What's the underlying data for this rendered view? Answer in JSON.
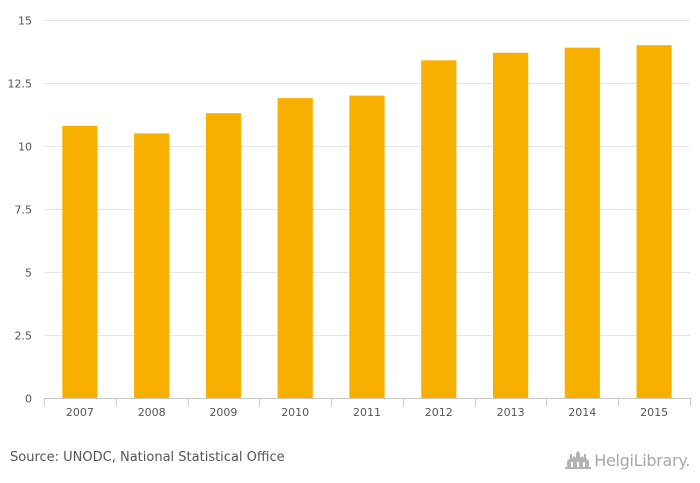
{
  "chart_data": {
    "type": "bar",
    "categories": [
      "2007",
      "2008",
      "2009",
      "2010",
      "2011",
      "2012",
      "2013",
      "2014",
      "2015"
    ],
    "values": [
      10.8,
      10.5,
      11.3,
      11.9,
      12.0,
      13.4,
      13.7,
      13.9,
      14.0
    ],
    "title": "",
    "xlabel": "",
    "ylabel": "",
    "ylim": [
      0,
      15
    ],
    "yticks": [
      "0",
      "2.5",
      "5",
      "7.5",
      "10",
      "12.5",
      "15"
    ],
    "grid": true,
    "bar_color": "#f8b000",
    "grid_color": "#e6e6e6"
  },
  "footer": {
    "source": "Source: UNODC, National Statistical Office",
    "brand": "HelgiLibrary."
  },
  "icons": {
    "brand_logo": "library-building-icon"
  }
}
